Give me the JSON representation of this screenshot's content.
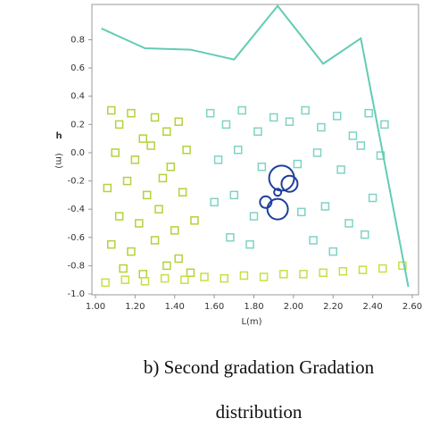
{
  "chart_data": {
    "type": "scatter",
    "xlabel": "L(m)",
    "ylabel": "h",
    "yunit": "(m)",
    "caption": [
      "b) Second gradation Gradation",
      "distribution"
    ],
    "xlim": [
      1.0,
      2.6
    ],
    "ylim": [
      -1.0,
      1.05
    ],
    "xticks": [
      {
        "value": 1.0,
        "label": "1.00"
      },
      {
        "value": 1.2,
        "label": "1.20"
      },
      {
        "value": 1.4,
        "label": "1.40"
      },
      {
        "value": 1.6,
        "label": "1.60"
      },
      {
        "value": 1.8,
        "label": "1.80"
      },
      {
        "value": 2.0,
        "label": "2.00"
      },
      {
        "value": 2.2,
        "label": "2.20"
      },
      {
        "value": 2.4,
        "label": "2.40"
      },
      {
        "value": 2.6,
        "label": "2.60"
      }
    ],
    "yticks": [
      {
        "value": -1.0,
        "label": "-1.0"
      },
      -0.8,
      -0.6,
      -0.4,
      -0.2,
      {
        "value": 0.0,
        "label": "0.0"
      },
      0.2,
      0.4,
      0.6,
      0.8
    ],
    "line": {
      "color": "#62ccb4",
      "x": [
        1.03,
        1.25,
        1.48,
        1.7,
        1.92,
        2.15,
        2.34,
        2.58
      ],
      "values": [
        0.88,
        0.74,
        0.73,
        0.66,
        1.04,
        0.63,
        0.81,
        -0.95
      ]
    },
    "series": [
      {
        "color": "#b3d23c",
        "x": [
          1.08,
          1.12,
          1.18,
          1.24,
          1.3,
          1.36,
          1.42,
          1.1,
          1.2,
          1.28,
          1.38,
          1.46,
          1.06,
          1.16,
          1.26,
          1.34,
          1.44,
          1.12,
          1.22,
          1.32,
          1.4,
          1.5,
          1.08,
          1.18,
          1.3,
          1.42,
          1.14,
          1.24,
          1.36,
          1.48
        ],
        "values": [
          0.3,
          0.2,
          0.28,
          0.1,
          0.25,
          0.15,
          0.22,
          0.0,
          -0.05,
          0.05,
          -0.1,
          0.02,
          -0.25,
          -0.2,
          -0.3,
          -0.18,
          -0.28,
          -0.45,
          -0.5,
          -0.4,
          -0.55,
          -0.48,
          -0.65,
          -0.7,
          -0.62,
          -0.75,
          -0.82,
          -0.86,
          -0.8,
          -0.85
        ]
      },
      {
        "color": "#7fd3c4",
        "x": [
          1.58,
          1.66,
          1.74,
          1.82,
          1.9,
          1.98,
          2.06,
          2.14,
          2.22,
          2.3,
          2.38,
          2.46,
          1.62,
          1.72,
          1.84,
          2.02,
          2.12,
          2.24,
          2.34,
          2.44,
          1.6,
          1.7,
          1.8,
          2.04,
          2.16,
          2.28,
          2.4,
          1.68,
          1.78,
          2.1,
          2.2,
          2.36
        ],
        "values": [
          0.28,
          0.2,
          0.3,
          0.15,
          0.25,
          0.22,
          0.3,
          0.18,
          0.26,
          0.12,
          0.28,
          0.2,
          -0.05,
          0.02,
          -0.1,
          -0.08,
          0.0,
          -0.12,
          0.05,
          -0.02,
          -0.35,
          -0.3,
          -0.45,
          -0.42,
          -0.38,
          -0.5,
          -0.32,
          -0.6,
          -0.65,
          -0.62,
          -0.7,
          -0.58
        ]
      },
      {
        "color": "#c6df46",
        "x": [
          1.05,
          1.15,
          1.25,
          1.35,
          1.45,
          1.55,
          1.65,
          1.75,
          1.85,
          1.95,
          2.05,
          2.15,
          2.25,
          2.35,
          2.45,
          2.55
        ],
        "values": [
          -0.92,
          -0.9,
          -0.91,
          -0.89,
          -0.9,
          -0.88,
          -0.89,
          -0.87,
          -0.88,
          -0.86,
          -0.86,
          -0.85,
          -0.84,
          -0.83,
          -0.82,
          -0.8
        ]
      },
      {
        "color": "#1e3f9c",
        "x": [
          1.92,
          1.86,
          1.98,
          1.92,
          1.94
        ],
        "values": [
          -0.28,
          -0.35,
          -0.22,
          -0.4,
          -0.18
        ]
      }
    ]
  }
}
